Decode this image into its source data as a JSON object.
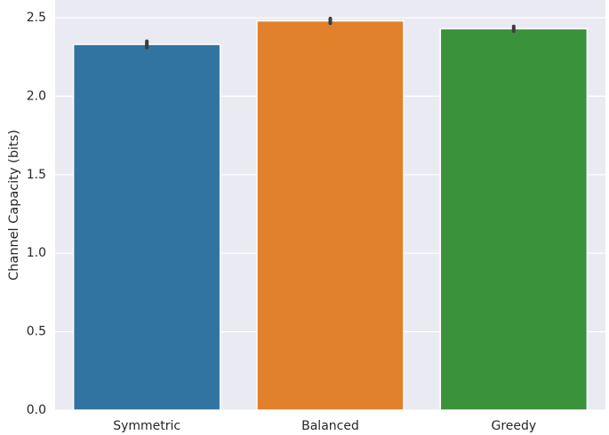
{
  "chart_data": {
    "type": "bar",
    "categories": [
      "Symmetric",
      "Balanced",
      "Greedy"
    ],
    "values": [
      2.33,
      2.48,
      2.43
    ],
    "error_bars": [
      [
        2.31,
        2.35
      ],
      [
        2.465,
        2.495
      ],
      [
        2.415,
        2.445
      ]
    ],
    "colors": [
      "#3274a1",
      "#e1812c",
      "#3a923a"
    ],
    "title": "",
    "xlabel": "",
    "ylabel": "Channel Capacity (bits)",
    "ylim": [
      0,
      2.5
    ],
    "yticks": [
      "0.0",
      "0.5",
      "1.0",
      "1.5",
      "2.0",
      "2.5"
    ],
    "grid": true,
    "background": "#eaeaf2"
  }
}
